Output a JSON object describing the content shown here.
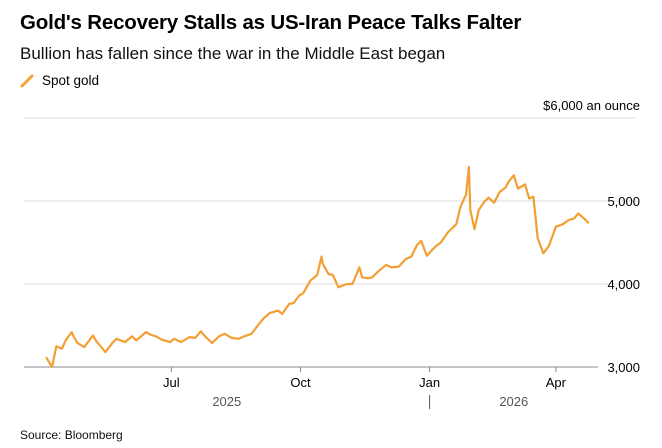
{
  "title": "Gold's Recovery Stalls as US-Iran Peace Talks Falter",
  "subtitle": "Bullion has fallen since the war in the Middle East began",
  "source": "Source: Bloomberg",
  "colors": {
    "series": "#f29f33",
    "grid": "#dcdcdc",
    "axis": "#888888",
    "text": "#000000"
  },
  "chart_data": {
    "type": "line",
    "series": [
      {
        "name": "Spot gold",
        "x": [
          "2025-04-03",
          "2025-04-07",
          "2025-04-10",
          "2025-04-14",
          "2025-04-17",
          "2025-04-21",
          "2025-04-22",
          "2025-04-25",
          "2025-04-30",
          "2025-05-06",
          "2025-05-09",
          "2025-05-15",
          "2025-05-20",
          "2025-05-23",
          "2025-05-29",
          "2025-06-03",
          "2025-06-06",
          "2025-06-13",
          "2025-06-16",
          "2025-06-20",
          "2025-06-24",
          "2025-06-30",
          "2025-07-03",
          "2025-07-08",
          "2025-07-14",
          "2025-07-18",
          "2025-07-22",
          "2025-07-25",
          "2025-07-30",
          "2025-08-04",
          "2025-08-08",
          "2025-08-13",
          "2025-08-18",
          "2025-08-22",
          "2025-08-27",
          "2025-09-02",
          "2025-09-05",
          "2025-09-09",
          "2025-09-15",
          "2025-09-18",
          "2025-09-23",
          "2025-09-26",
          "2025-09-30",
          "2025-10-03",
          "2025-10-08",
          "2025-10-13",
          "2025-10-16",
          "2025-10-17",
          "2025-10-21",
          "2025-10-24",
          "2025-10-28",
          "2025-11-03",
          "2025-11-07",
          "2025-11-12",
          "2025-11-14",
          "2025-11-18",
          "2025-11-21",
          "2025-11-26",
          "2025-12-01",
          "2025-12-05",
          "2025-12-10",
          "2025-12-15",
          "2025-12-19",
          "2025-12-23",
          "2025-12-26",
          "2025-12-30",
          "2026-01-05",
          "2026-01-09",
          "2026-01-14",
          "2026-01-20",
          "2026-01-23",
          "2026-01-27",
          "2026-01-29",
          "2026-01-30",
          "2026-02-02",
          "2026-02-05",
          "2026-02-09",
          "2026-02-12",
          "2026-02-16",
          "2026-02-20",
          "2026-02-24",
          "2026-02-27",
          "2026-03-02",
          "2026-03-05",
          "2026-03-10",
          "2026-03-13",
          "2026-03-16",
          "2026-03-19",
          "2026-03-23",
          "2026-03-27",
          "2026-04-01",
          "2026-04-06",
          "2026-04-10",
          "2026-04-14",
          "2026-04-17",
          "2026-04-21",
          "2026-04-24"
        ],
        "y": [
          3110,
          3000,
          3250,
          3220,
          3330,
          3420,
          3380,
          3290,
          3240,
          3380,
          3300,
          3180,
          3290,
          3340,
          3300,
          3370,
          3320,
          3420,
          3390,
          3370,
          3330,
          3300,
          3340,
          3300,
          3360,
          3350,
          3430,
          3370,
          3290,
          3370,
          3400,
          3350,
          3340,
          3370,
          3400,
          3530,
          3590,
          3650,
          3680,
          3640,
          3760,
          3770,
          3860,
          3890,
          4040,
          4110,
          4330,
          4240,
          4120,
          4110,
          3960,
          4000,
          4000,
          4200,
          4080,
          4070,
          4080,
          4160,
          4230,
          4200,
          4210,
          4300,
          4330,
          4470,
          4520,
          4340,
          4450,
          4500,
          4620,
          4720,
          4930,
          5080,
          5410,
          4890,
          4660,
          4890,
          4990,
          5040,
          4980,
          5110,
          5160,
          5250,
          5310,
          5150,
          5200,
          5030,
          5050,
          4550,
          4370,
          4460,
          4690,
          4720,
          4770,
          4790,
          4850,
          4790,
          4740
        ]
      }
    ],
    "x_ticks": [
      "Jul",
      "Oct",
      "Jan",
      "Apr"
    ],
    "x_tick_dates": [
      "2025-07-01",
      "2025-10-01",
      "2026-01-01",
      "2026-04-01"
    ],
    "years": [
      "2025",
      "2026"
    ],
    "y_ticks": [
      {
        "value": 3000,
        "label": "3,000"
      },
      {
        "value": 4000,
        "label": "4,000"
      },
      {
        "value": 5000,
        "label": "5,000"
      },
      {
        "value": 6000,
        "label": "$6,000 an ounce"
      }
    ],
    "xlim": [
      "2025-03-18",
      "2026-05-01"
    ],
    "ylim": [
      3000,
      6000
    ],
    "grid": true,
    "legend": "top-left"
  }
}
